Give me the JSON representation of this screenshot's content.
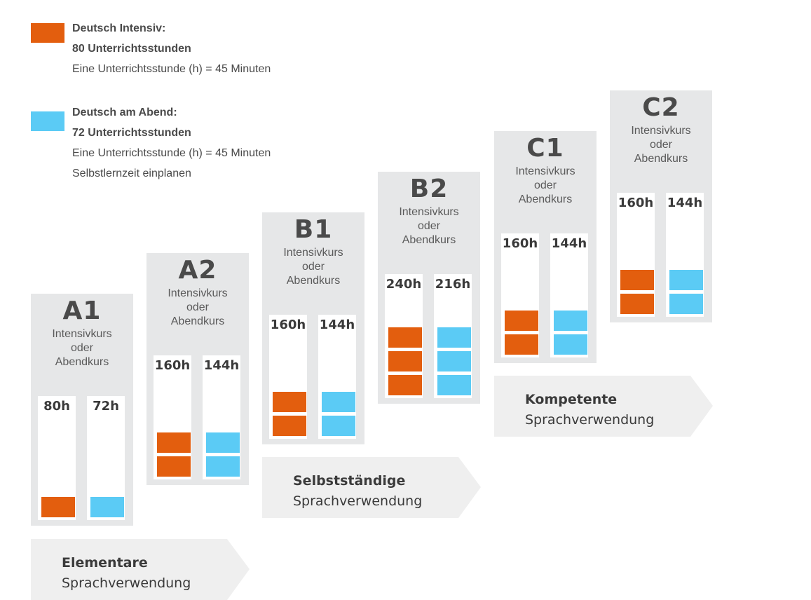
{
  "legend": {
    "intensiv": {
      "title": "Deutsch Intensiv:",
      "hours": "80 Unterrichtsstunden",
      "note": "Eine Unterrichtsstunde (h) = 45 Minuten",
      "color": "#e35e0e"
    },
    "abend": {
      "title": "Deutsch am Abend:",
      "hours": "72 Unterrichtsstunden",
      "note": "Eine Unterrichtsstunde (h) = 45 Minuten",
      "note2": "Selbstlernzeit einplanen",
      "color": "#5bcbf5"
    }
  },
  "levels": [
    {
      "code": "A1",
      "desc1": "Intensivkurs",
      "desc2": "oder",
      "desc3": "Abendkurs",
      "intensiv": "80h",
      "abend": "72h",
      "blocks": 1
    },
    {
      "code": "A2",
      "desc1": "Intensivkurs",
      "desc2": "oder",
      "desc3": "Abendkurs",
      "intensiv": "160h",
      "abend": "144h",
      "blocks": 2
    },
    {
      "code": "B1",
      "desc1": "Intensivkurs",
      "desc2": "oder",
      "desc3": "Abendkurs",
      "intensiv": "160h",
      "abend": "144h",
      "blocks": 2
    },
    {
      "code": "B2",
      "desc1": "Intensivkurs",
      "desc2": "oder",
      "desc3": "Abendkurs",
      "intensiv": "240h",
      "abend": "216h",
      "blocks": 3
    },
    {
      "code": "C1",
      "desc1": "Intensivkurs",
      "desc2": "oder",
      "desc3": "Abendkurs",
      "intensiv": "160h",
      "abend": "144h",
      "blocks": 2
    },
    {
      "code": "C2",
      "desc1": "Intensivkurs",
      "desc2": "oder",
      "desc3": "Abendkurs",
      "intensiv": "160h",
      "abend": "144h",
      "blocks": 2
    }
  ],
  "bands": [
    {
      "line1": "Elementare",
      "line2": "Sprachverwendung"
    },
    {
      "line1": "Selbstständige",
      "line2": "Sprachverwendung"
    },
    {
      "line1": "Kompetente",
      "line2": "Sprachverwendung"
    }
  ]
}
